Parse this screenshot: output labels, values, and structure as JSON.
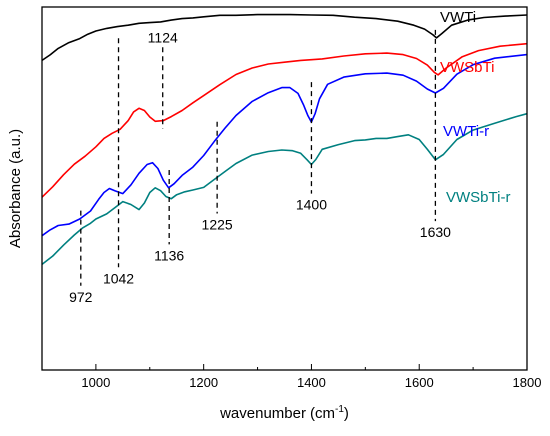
{
  "chart_data": {
    "type": "line",
    "title": "",
    "xlabel": "wavenumber",
    "xlabel_unit": "(cm",
    "xlabel_sup": "-1",
    "xlabel_close": ")",
    "ylabel": "Absorbance (a.u.)",
    "xlim": [
      900,
      1800
    ],
    "ylim": [
      0,
      100
    ],
    "x_ticks": [
      1000,
      1200,
      1400,
      1600,
      1800
    ],
    "y_ticks_shown": false,
    "grid": false,
    "series": [
      {
        "name": "VWTi",
        "color": "#000000",
        "points": [
          [
            900,
            85.3
          ],
          [
            915,
            86.8
          ],
          [
            930,
            88.6
          ],
          [
            950,
            90.2
          ],
          [
            970,
            91.3
          ],
          [
            985,
            92.5
          ],
          [
            1000,
            93.4
          ],
          [
            1020,
            94.1
          ],
          [
            1040,
            94.6
          ],
          [
            1060,
            95.0
          ],
          [
            1080,
            95.5
          ],
          [
            1100,
            95.7
          ],
          [
            1120,
            95.9
          ],
          [
            1140,
            96.4
          ],
          [
            1160,
            96.8
          ],
          [
            1180,
            97.0
          ],
          [
            1200,
            97.3
          ],
          [
            1230,
            97.7
          ],
          [
            1260,
            97.7
          ],
          [
            1300,
            97.9
          ],
          [
            1330,
            97.9
          ],
          [
            1360,
            97.9
          ],
          [
            1400,
            97.8
          ],
          [
            1440,
            97.7
          ],
          [
            1480,
            97.2
          ],
          [
            1520,
            96.8
          ],
          [
            1560,
            96.1
          ],
          [
            1590,
            95.0
          ],
          [
            1610,
            93.9
          ],
          [
            1625,
            92.4
          ],
          [
            1632,
            91.5
          ],
          [
            1642,
            92.7
          ],
          [
            1660,
            95.0
          ],
          [
            1690,
            96.4
          ],
          [
            1720,
            97.1
          ],
          [
            1760,
            97.5
          ],
          [
            1800,
            97.8
          ]
        ]
      },
      {
        "name": "VWSbTi",
        "color": "#ff0000",
        "points": [
          [
            900,
            47.6
          ],
          [
            920,
            50.5
          ],
          [
            940,
            53.8
          ],
          [
            960,
            56.7
          ],
          [
            980,
            58.9
          ],
          [
            1000,
            61.5
          ],
          [
            1015,
            63.8
          ],
          [
            1030,
            65.2
          ],
          [
            1045,
            66.3
          ],
          [
            1060,
            68.7
          ],
          [
            1070,
            71.1
          ],
          [
            1080,
            72.1
          ],
          [
            1090,
            71.5
          ],
          [
            1100,
            69.7
          ],
          [
            1110,
            68.5
          ],
          [
            1125,
            68.7
          ],
          [
            1140,
            69.8
          ],
          [
            1160,
            71.5
          ],
          [
            1180,
            73.6
          ],
          [
            1200,
            75.6
          ],
          [
            1230,
            78.6
          ],
          [
            1260,
            81.4
          ],
          [
            1290,
            83.2
          ],
          [
            1320,
            84.3
          ],
          [
            1350,
            84.8
          ],
          [
            1380,
            85.3
          ],
          [
            1420,
            85.7
          ],
          [
            1460,
            86.5
          ],
          [
            1500,
            87.1
          ],
          [
            1540,
            87.3
          ],
          [
            1570,
            86.9
          ],
          [
            1595,
            85.8
          ],
          [
            1615,
            84.0
          ],
          [
            1628,
            82.0
          ],
          [
            1635,
            81.3
          ],
          [
            1650,
            83.2
          ],
          [
            1680,
            86.3
          ],
          [
            1710,
            88.0
          ],
          [
            1750,
            89.2
          ],
          [
            1800,
            89.9
          ]
        ]
      },
      {
        "name": "VWTi-r",
        "color": "#0000ff",
        "points": [
          [
            900,
            37.0
          ],
          [
            915,
            38.6
          ],
          [
            930,
            39.8
          ],
          [
            950,
            40.2
          ],
          [
            970,
            41.6
          ],
          [
            990,
            43.8
          ],
          [
            1005,
            47.0
          ],
          [
            1015,
            48.9
          ],
          [
            1025,
            50.0
          ],
          [
            1035,
            49.4
          ],
          [
            1050,
            48.6
          ],
          [
            1065,
            51.0
          ],
          [
            1080,
            54.2
          ],
          [
            1095,
            56.6
          ],
          [
            1105,
            57.1
          ],
          [
            1115,
            55.5
          ],
          [
            1125,
            52.3
          ],
          [
            1135,
            50.2
          ],
          [
            1145,
            51.3
          ],
          [
            1160,
            53.6
          ],
          [
            1180,
            55.9
          ],
          [
            1200,
            59.1
          ],
          [
            1220,
            63.0
          ],
          [
            1240,
            66.7
          ],
          [
            1260,
            70.1
          ],
          [
            1290,
            74.0
          ],
          [
            1320,
            76.4
          ],
          [
            1345,
            77.8
          ],
          [
            1360,
            77.8
          ],
          [
            1375,
            76.2
          ],
          [
            1385,
            73.1
          ],
          [
            1393,
            70.2
          ],
          [
            1400,
            68.3
          ],
          [
            1407,
            70.7
          ],
          [
            1415,
            74.7
          ],
          [
            1430,
            78.7
          ],
          [
            1460,
            80.7
          ],
          [
            1500,
            81.6
          ],
          [
            1540,
            81.8
          ],
          [
            1570,
            81.2
          ],
          [
            1595,
            79.6
          ],
          [
            1615,
            77.4
          ],
          [
            1630,
            76.3
          ],
          [
            1645,
            77.6
          ],
          [
            1670,
            81.5
          ],
          [
            1700,
            84.1
          ],
          [
            1740,
            85.9
          ],
          [
            1800,
            86.9
          ]
        ]
      },
      {
        "name": "VWSbTi-r",
        "color": "#008080",
        "points": [
          [
            900,
            29.1
          ],
          [
            920,
            31.4
          ],
          [
            940,
            34.4
          ],
          [
            960,
            37.2
          ],
          [
            975,
            39.1
          ],
          [
            990,
            40.4
          ],
          [
            1000,
            41.6
          ],
          [
            1020,
            43.0
          ],
          [
            1035,
            44.7
          ],
          [
            1050,
            46.4
          ],
          [
            1065,
            45.6
          ],
          [
            1080,
            44.2
          ],
          [
            1090,
            46.0
          ],
          [
            1100,
            48.9
          ],
          [
            1110,
            50.2
          ],
          [
            1120,
            49.4
          ],
          [
            1130,
            47.8
          ],
          [
            1140,
            47.2
          ],
          [
            1150,
            48.3
          ],
          [
            1165,
            49.1
          ],
          [
            1180,
            49.6
          ],
          [
            1200,
            50.3
          ],
          [
            1220,
            52.5
          ],
          [
            1240,
            54.7
          ],
          [
            1260,
            56.9
          ],
          [
            1290,
            59.2
          ],
          [
            1320,
            60.2
          ],
          [
            1345,
            60.6
          ],
          [
            1365,
            60.4
          ],
          [
            1380,
            59.7
          ],
          [
            1392,
            57.9
          ],
          [
            1400,
            56.6
          ],
          [
            1408,
            58.0
          ],
          [
            1420,
            60.8
          ],
          [
            1450,
            62.1
          ],
          [
            1480,
            63.2
          ],
          [
            1500,
            63.4
          ],
          [
            1520,
            63.8
          ],
          [
            1540,
            63.8
          ],
          [
            1560,
            64.3
          ],
          [
            1580,
            64.8
          ],
          [
            1600,
            63.5
          ],
          [
            1615,
            60.8
          ],
          [
            1630,
            57.9
          ],
          [
            1645,
            59.4
          ],
          [
            1670,
            63.5
          ],
          [
            1700,
            66.1
          ],
          [
            1740,
            68.0
          ],
          [
            1780,
            69.8
          ],
          [
            1800,
            70.6
          ]
        ]
      }
    ],
    "series_labels": [
      {
        "text": "VWTi",
        "color": "#000000"
      },
      {
        "text": "VWSbTi",
        "color": "#ff0000"
      },
      {
        "text": "VWTi-r",
        "color": "#0000ff"
      },
      {
        "text": "VWSbTi-r",
        "color": "#008080"
      }
    ],
    "annotations": [
      {
        "label": "1124",
        "x": 1124,
        "y_top": 88.9,
        "y_bottom": 66.5,
        "label_pos": "top"
      },
      {
        "label": "1630",
        "x": 1630,
        "y_top": 93.7,
        "y_bottom": 41.0,
        "label_pos": "bottom"
      },
      {
        "label": "1400",
        "x": 1400,
        "y_top": 79.3,
        "y_bottom": 48.6,
        "label_pos": "bottom"
      },
      {
        "label": "1225",
        "x": 1225,
        "y_top": 68.4,
        "y_bottom": 43.1,
        "label_pos": "bottom"
      },
      {
        "label": "1136",
        "x": 1136,
        "y_top": 55.1,
        "y_bottom": 34.6,
        "label_pos": "bottom"
      },
      {
        "label": "1042",
        "x": 1042,
        "y_top": 91.4,
        "y_bottom": 28.3,
        "label_pos": "bottom"
      },
      {
        "label": "972",
        "x": 972,
        "y_top": 43.9,
        "y_bottom": 23.2,
        "label_pos": "bottom"
      }
    ]
  }
}
